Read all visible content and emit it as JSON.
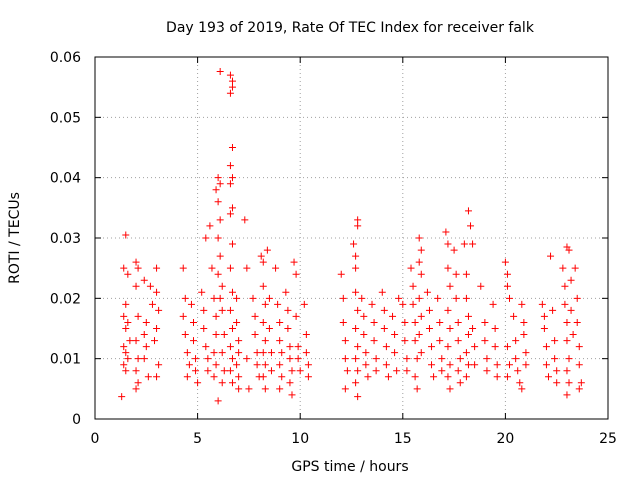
{
  "chart_data": {
    "type": "scatter",
    "title": "Day 193 of 2019, Rate Of TEC Index for receiver falk",
    "xlabel": "GPS time / hours",
    "ylabel": "ROTI / TECUs",
    "xlim": [
      0,
      25
    ],
    "ylim": [
      0,
      0.06
    ],
    "x_ticks": [
      "0",
      "5",
      "10",
      "15",
      "20",
      "25"
    ],
    "y_ticks": [
      "0",
      "0.01",
      "0.02",
      "0.03",
      "0.04",
      "0.05",
      "0.06"
    ],
    "grid": true,
    "marker": "+",
    "color": "#ff0000",
    "points": [
      [
        1.3,
        0.0037
      ],
      [
        1.5,
        0.0305
      ],
      [
        1.4,
        0.025
      ],
      [
        1.5,
        0.019
      ],
      [
        1.4,
        0.017
      ],
      [
        1.5,
        0.015
      ],
      [
        1.4,
        0.012
      ],
      [
        1.5,
        0.011
      ],
      [
        1.4,
        0.009
      ],
      [
        1.5,
        0.008
      ],
      [
        1.6,
        0.024
      ],
      [
        1.6,
        0.016
      ],
      [
        1.6,
        0.01
      ],
      [
        1.7,
        0.013
      ],
      [
        2.0,
        0.026
      ],
      [
        2.1,
        0.025
      ],
      [
        2.0,
        0.022
      ],
      [
        2.1,
        0.017
      ],
      [
        2.0,
        0.013
      ],
      [
        2.1,
        0.01
      ],
      [
        2.0,
        0.008
      ],
      [
        2.1,
        0.006
      ],
      [
        2.0,
        0.005
      ],
      [
        2.4,
        0.023
      ],
      [
        2.5,
        0.016
      ],
      [
        2.4,
        0.014
      ],
      [
        2.5,
        0.012
      ],
      [
        2.4,
        0.01
      ],
      [
        2.6,
        0.007
      ],
      [
        2.7,
        0.022
      ],
      [
        2.8,
        0.019
      ],
      [
        2.9,
        0.013
      ],
      [
        3.0,
        0.025
      ],
      [
        3.0,
        0.021
      ],
      [
        3.1,
        0.018
      ],
      [
        3.0,
        0.015
      ],
      [
        3.1,
        0.009
      ],
      [
        3.0,
        0.007
      ],
      [
        4.3,
        0.025
      ],
      [
        4.4,
        0.02
      ],
      [
        4.3,
        0.017
      ],
      [
        4.4,
        0.014
      ],
      [
        4.5,
        0.011
      ],
      [
        4.6,
        0.009
      ],
      [
        4.5,
        0.007
      ],
      [
        4.7,
        0.019
      ],
      [
        4.8,
        0.016
      ],
      [
        4.8,
        0.013
      ],
      [
        4.9,
        0.01
      ],
      [
        4.9,
        0.008
      ],
      [
        5.0,
        0.006
      ],
      [
        5.2,
        0.021
      ],
      [
        5.3,
        0.018
      ],
      [
        5.3,
        0.015
      ],
      [
        5.4,
        0.012
      ],
      [
        5.5,
        0.01
      ],
      [
        5.5,
        0.008
      ],
      [
        5.4,
        0.03
      ],
      [
        5.6,
        0.032
      ],
      [
        5.7,
        0.025
      ],
      [
        5.8,
        0.02
      ],
      [
        5.9,
        0.017
      ],
      [
        5.9,
        0.014
      ],
      [
        5.8,
        0.011
      ],
      [
        5.9,
        0.009
      ],
      [
        5.8,
        0.007
      ],
      [
        5.9,
        0.038
      ],
      [
        6.0,
        0.04
      ],
      [
        6.1,
        0.039
      ],
      [
        6.0,
        0.036
      ],
      [
        6.1,
        0.033
      ],
      [
        6.0,
        0.03
      ],
      [
        6.1,
        0.027
      ],
      [
        6.0,
        0.024
      ],
      [
        6.1,
        0.02
      ],
      [
        6.1,
        0.0576
      ],
      [
        6.2,
        0.022
      ],
      [
        6.2,
        0.018
      ],
      [
        6.3,
        0.014
      ],
      [
        6.2,
        0.011
      ],
      [
        6.3,
        0.008
      ],
      [
        6.2,
        0.006
      ],
      [
        6.0,
        0.003
      ],
      [
        6.6,
        0.057
      ],
      [
        6.7,
        0.056
      ],
      [
        6.7,
        0.055
      ],
      [
        6.6,
        0.054
      ],
      [
        6.7,
        0.045
      ],
      [
        6.6,
        0.042
      ],
      [
        6.7,
        0.04
      ],
      [
        6.6,
        0.039
      ],
      [
        6.7,
        0.035
      ],
      [
        6.6,
        0.034
      ],
      [
        6.7,
        0.029
      ],
      [
        6.6,
        0.025
      ],
      [
        6.7,
        0.021
      ],
      [
        6.6,
        0.018
      ],
      [
        6.7,
        0.015
      ],
      [
        6.6,
        0.012
      ],
      [
        6.7,
        0.01
      ],
      [
        6.6,
        0.008
      ],
      [
        6.7,
        0.006
      ],
      [
        6.9,
        0.02
      ],
      [
        6.9,
        0.016
      ],
      [
        7.0,
        0.013
      ],
      [
        7.0,
        0.011
      ],
      [
        6.9,
        0.009
      ],
      [
        7.0,
        0.007
      ],
      [
        7.0,
        0.005
      ],
      [
        7.3,
        0.033
      ],
      [
        7.4,
        0.025
      ],
      [
        7.4,
        0.01
      ],
      [
        7.5,
        0.005
      ],
      [
        7.7,
        0.02
      ],
      [
        7.8,
        0.017
      ],
      [
        7.8,
        0.014
      ],
      [
        7.9,
        0.011
      ],
      [
        7.9,
        0.009
      ],
      [
        8.0,
        0.007
      ],
      [
        8.1,
        0.027
      ],
      [
        8.2,
        0.026
      ],
      [
        8.2,
        0.022
      ],
      [
        8.3,
        0.019
      ],
      [
        8.2,
        0.016
      ],
      [
        8.3,
        0.013
      ],
      [
        8.2,
        0.011
      ],
      [
        8.3,
        0.009
      ],
      [
        8.2,
        0.007
      ],
      [
        8.3,
        0.005
      ],
      [
        8.4,
        0.028
      ],
      [
        8.5,
        0.02
      ],
      [
        8.5,
        0.015
      ],
      [
        8.6,
        0.011
      ],
      [
        8.6,
        0.008
      ],
      [
        8.8,
        0.025
      ],
      [
        8.9,
        0.019
      ],
      [
        9.0,
        0.016
      ],
      [
        9.0,
        0.013
      ],
      [
        9.1,
        0.011
      ],
      [
        9.0,
        0.009
      ],
      [
        9.1,
        0.007
      ],
      [
        9.0,
        0.005
      ],
      [
        9.3,
        0.021
      ],
      [
        9.4,
        0.018
      ],
      [
        9.4,
        0.015
      ],
      [
        9.5,
        0.012
      ],
      [
        9.5,
        0.01
      ],
      [
        9.6,
        0.008
      ],
      [
        9.5,
        0.006
      ],
      [
        9.6,
        0.004
      ],
      [
        9.7,
        0.026
      ],
      [
        9.8,
        0.024
      ],
      [
        9.8,
        0.017
      ],
      [
        9.9,
        0.012
      ],
      [
        9.9,
        0.01
      ],
      [
        10.0,
        0.008
      ],
      [
        10.2,
        0.019
      ],
      [
        10.3,
        0.014
      ],
      [
        10.3,
        0.011
      ],
      [
        10.4,
        0.009
      ],
      [
        10.4,
        0.007
      ],
      [
        12.0,
        0.024
      ],
      [
        12.1,
        0.02
      ],
      [
        12.1,
        0.016
      ],
      [
        12.2,
        0.013
      ],
      [
        12.2,
        0.01
      ],
      [
        12.3,
        0.008
      ],
      [
        12.2,
        0.005
      ],
      [
        12.6,
        0.029
      ],
      [
        12.7,
        0.027
      ],
      [
        12.7,
        0.025
      ],
      [
        12.8,
        0.033
      ],
      [
        12.8,
        0.032
      ],
      [
        12.7,
        0.021
      ],
      [
        12.8,
        0.018
      ],
      [
        12.7,
        0.015
      ],
      [
        12.8,
        0.012
      ],
      [
        12.7,
        0.01
      ],
      [
        12.8,
        0.008
      ],
      [
        12.7,
        0.006
      ],
      [
        12.8,
        0.0037
      ],
      [
        13.0,
        0.02
      ],
      [
        13.1,
        0.017
      ],
      [
        13.1,
        0.014
      ],
      [
        13.2,
        0.011
      ],
      [
        13.2,
        0.009
      ],
      [
        13.3,
        0.007
      ],
      [
        13.5,
        0.019
      ],
      [
        13.6,
        0.016
      ],
      [
        13.6,
        0.013
      ],
      [
        13.7,
        0.01
      ],
      [
        13.7,
        0.008
      ],
      [
        14.0,
        0.021
      ],
      [
        14.1,
        0.018
      ],
      [
        14.1,
        0.015
      ],
      [
        14.2,
        0.012
      ],
      [
        14.2,
        0.009
      ],
      [
        14.3,
        0.007
      ],
      [
        14.5,
        0.017
      ],
      [
        14.6,
        0.014
      ],
      [
        14.6,
        0.011
      ],
      [
        14.7,
        0.008
      ],
      [
        14.8,
        0.02
      ],
      [
        15.0,
        0.019
      ],
      [
        15.1,
        0.016
      ],
      [
        15.1,
        0.013
      ],
      [
        15.2,
        0.01
      ],
      [
        15.2,
        0.008
      ],
      [
        15.4,
        0.025
      ],
      [
        15.5,
        0.022
      ],
      [
        15.5,
        0.019
      ],
      [
        15.6,
        0.016
      ],
      [
        15.6,
        0.013
      ],
      [
        15.7,
        0.01
      ],
      [
        15.6,
        0.007
      ],
      [
        15.7,
        0.005
      ],
      [
        15.8,
        0.03
      ],
      [
        15.9,
        0.028
      ],
      [
        15.8,
        0.026
      ],
      [
        15.9,
        0.024
      ],
      [
        15.8,
        0.02
      ],
      [
        15.9,
        0.017
      ],
      [
        15.8,
        0.014
      ],
      [
        15.9,
        0.011
      ],
      [
        16.2,
        0.021
      ],
      [
        16.3,
        0.018
      ],
      [
        16.3,
        0.015
      ],
      [
        16.4,
        0.012
      ],
      [
        16.4,
        0.009
      ],
      [
        16.5,
        0.007
      ],
      [
        16.7,
        0.02
      ],
      [
        16.8,
        0.016
      ],
      [
        16.8,
        0.013
      ],
      [
        16.9,
        0.01
      ],
      [
        16.9,
        0.008
      ],
      [
        17.1,
        0.031
      ],
      [
        17.2,
        0.029
      ],
      [
        17.2,
        0.025
      ],
      [
        17.3,
        0.022
      ],
      [
        17.2,
        0.018
      ],
      [
        17.3,
        0.015
      ],
      [
        17.2,
        0.012
      ],
      [
        17.3,
        0.009
      ],
      [
        17.2,
        0.007
      ],
      [
        17.3,
        0.005
      ],
      [
        17.5,
        0.028
      ],
      [
        17.6,
        0.024
      ],
      [
        17.6,
        0.02
      ],
      [
        17.7,
        0.016
      ],
      [
        17.7,
        0.013
      ],
      [
        17.8,
        0.01
      ],
      [
        17.7,
        0.008
      ],
      [
        17.8,
        0.006
      ],
      [
        18.0,
        0.029
      ],
      [
        18.1,
        0.024
      ],
      [
        18.1,
        0.02
      ],
      [
        18.2,
        0.017
      ],
      [
        18.2,
        0.014
      ],
      [
        18.1,
        0.011
      ],
      [
        18.2,
        0.009
      ],
      [
        18.1,
        0.007
      ],
      [
        18.2,
        0.0345
      ],
      [
        18.3,
        0.032
      ],
      [
        18.4,
        0.029
      ],
      [
        18.4,
        0.015
      ],
      [
        18.5,
        0.012
      ],
      [
        18.5,
        0.009
      ],
      [
        18.8,
        0.022
      ],
      [
        19.0,
        0.016
      ],
      [
        19.0,
        0.013
      ],
      [
        19.1,
        0.01
      ],
      [
        19.1,
        0.008
      ],
      [
        19.4,
        0.019
      ],
      [
        19.5,
        0.015
      ],
      [
        19.5,
        0.012
      ],
      [
        19.6,
        0.009
      ],
      [
        19.6,
        0.007
      ],
      [
        20.0,
        0.026
      ],
      [
        20.1,
        0.024
      ],
      [
        20.1,
        0.022
      ],
      [
        20.2,
        0.02
      ],
      [
        20.1,
        0.012
      ],
      [
        20.2,
        0.009
      ],
      [
        20.1,
        0.007
      ],
      [
        20.4,
        0.017
      ],
      [
        20.5,
        0.013
      ],
      [
        20.5,
        0.01
      ],
      [
        20.6,
        0.008
      ],
      [
        20.7,
        0.006
      ],
      [
        20.8,
        0.005
      ],
      [
        20.8,
        0.019
      ],
      [
        20.9,
        0.016
      ],
      [
        20.9,
        0.014
      ],
      [
        21.0,
        0.011
      ],
      [
        21.0,
        0.009
      ],
      [
        21.8,
        0.019
      ],
      [
        21.9,
        0.017
      ],
      [
        21.9,
        0.015
      ],
      [
        22.0,
        0.012
      ],
      [
        22.0,
        0.009
      ],
      [
        22.1,
        0.007
      ],
      [
        22.2,
        0.027
      ],
      [
        22.3,
        0.018
      ],
      [
        22.4,
        0.013
      ],
      [
        22.4,
        0.01
      ],
      [
        22.5,
        0.008
      ],
      [
        22.5,
        0.006
      ],
      [
        22.8,
        0.025
      ],
      [
        22.9,
        0.022
      ],
      [
        22.9,
        0.019
      ],
      [
        23.0,
        0.016
      ],
      [
        23.0,
        0.013
      ],
      [
        23.1,
        0.01
      ],
      [
        23.0,
        0.008
      ],
      [
        23.1,
        0.006
      ],
      [
        23.0,
        0.004
      ],
      [
        23.0,
        0.0285
      ],
      [
        23.1,
        0.028
      ],
      [
        23.2,
        0.023
      ],
      [
        23.2,
        0.018
      ],
      [
        23.3,
        0.014
      ],
      [
        23.4,
        0.025
      ],
      [
        23.5,
        0.02
      ],
      [
        23.5,
        0.016
      ],
      [
        23.6,
        0.012
      ],
      [
        23.6,
        0.009
      ],
      [
        23.7,
        0.006
      ],
      [
        23.6,
        0.005
      ]
    ]
  }
}
